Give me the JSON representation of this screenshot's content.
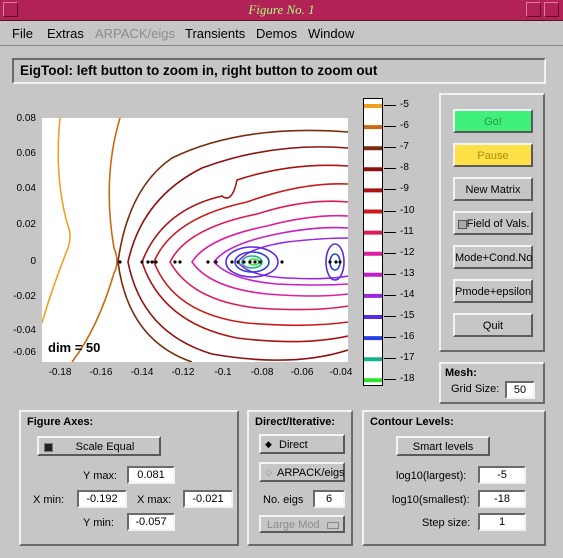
{
  "window": {
    "title": "Figure No. 1"
  },
  "menu": [
    "File",
    "Extras",
    "ARPACK/eigs",
    "Transients",
    "Demos",
    "Window"
  ],
  "banner": "EigTool: left button to zoom in, right button to zoom out",
  "plot": {
    "annotation": "dim = 50",
    "y_ticks": [
      "0.08",
      "0.06",
      "0.04",
      "0.02",
      "0",
      "-0.02",
      "-0.04",
      "-0.06"
    ],
    "x_ticks": [
      "-0.18",
      "-0.16",
      "-0.14",
      "-0.12",
      "-0.1",
      "-0.08",
      "-0.06",
      "-0.04"
    ]
  },
  "colorbar": {
    "labels": [
      "-5",
      "-6",
      "-7",
      "-8",
      "-9",
      "-10",
      "-11",
      "-12",
      "-13",
      "-14",
      "-15",
      "-16",
      "-17",
      "-18"
    ],
    "colors": [
      "#f0a020",
      "#c86a14",
      "#7a2c0c",
      "#8c1010",
      "#a81414",
      "#c81a1a",
      "#dc1a5a",
      "#dc20a0",
      "#c41ec8",
      "#9a28e0",
      "#5a2ce0",
      "#2840e0",
      "#16b090",
      "#30e030"
    ]
  },
  "buttons": {
    "go": "Go!",
    "pause": "Pause",
    "new_matrix": "New Matrix",
    "field_of_vals": "Field of Vals.",
    "mode_cond": "Mode+Cond.No",
    "pmode": "Pmode+epsilon",
    "quit": "Quit"
  },
  "mesh": {
    "title": "Mesh:",
    "grid_label": "Grid Size:",
    "grid_value": "50"
  },
  "figure_axes": {
    "title": "Figure Axes:",
    "scale_equal": "Scale Equal",
    "ymax_label": "Y max:",
    "ymax": "0.081",
    "xmin_label": "X min:",
    "xmin": "-0.192",
    "xmax_label": "X max:",
    "xmax": "-0.021",
    "ymin_label": "Y min:",
    "ymin": "-0.057"
  },
  "direct": {
    "title": "Direct/Iterative:",
    "direct": "Direct",
    "arpack": "ARPACK/eigs",
    "neigs_label": "No. eigs",
    "neigs": "6",
    "mode": "Large Mod"
  },
  "contour": {
    "title": "Contour Levels:",
    "smart": "Smart levels",
    "largest_label": "log10(largest):",
    "largest": "-5",
    "smallest_label": "log10(smallest):",
    "smallest": "-18",
    "step_label": "Step size:",
    "step": "1"
  }
}
